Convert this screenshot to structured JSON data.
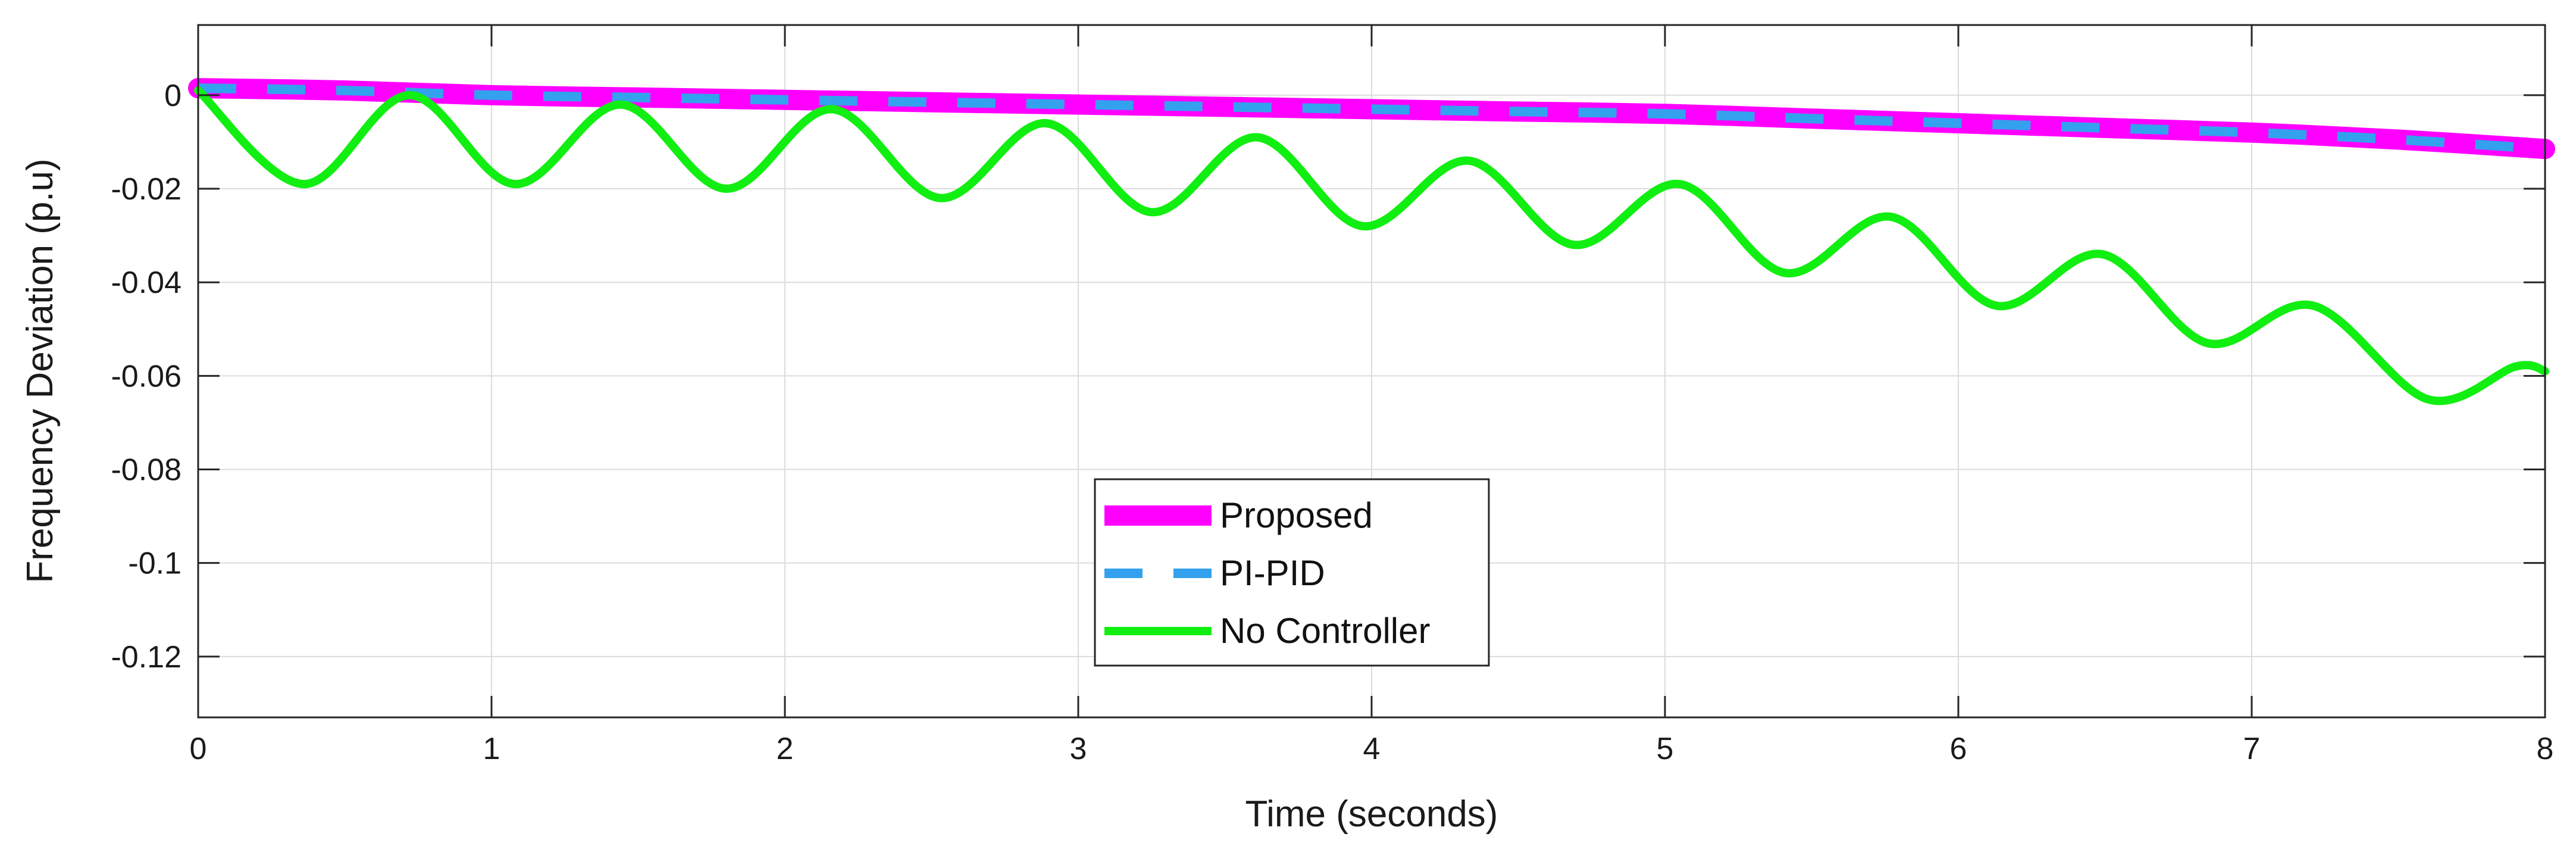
{
  "chart_data": {
    "type": "line",
    "title": "",
    "xlabel": "Time (seconds)",
    "ylabel": "Frequency Deviation (p.u)",
    "xlim": [
      0,
      8
    ],
    "ylim": [
      -0.133,
      0.015
    ],
    "xticks": [
      0,
      1,
      2,
      3,
      4,
      5,
      6,
      7,
      8
    ],
    "xtick_labels": [
      "0",
      "1",
      "2",
      "3",
      "4",
      "5",
      "6",
      "7",
      "8"
    ],
    "yticks": [
      0,
      -0.02,
      -0.04,
      -0.06,
      -0.08,
      -0.1,
      -0.12
    ],
    "ytick_labels": [
      "0",
      "-0.02",
      "-0.04",
      "-0.06",
      "-0.08",
      "-0.1",
      "-0.12"
    ],
    "grid": true,
    "legend_position": "bottom-center",
    "series": [
      {
        "name": "Proposed",
        "color": "#ff00ff",
        "style": "solid-thick",
        "x": [
          0,
          0.5,
          1,
          1.5,
          2,
          2.5,
          3,
          3.5,
          4,
          4.5,
          5,
          5.5,
          6,
          6.5,
          7,
          7.5,
          8
        ],
        "y": [
          0.0015,
          0.001,
          0.0,
          -0.0005,
          -0.001,
          -0.0015,
          -0.002,
          -0.0025,
          -0.003,
          -0.0035,
          -0.004,
          -0.005,
          -0.006,
          -0.007,
          -0.008,
          -0.0095,
          -0.0115
        ]
      },
      {
        "name": "PI-PID",
        "color": "#33a1ee",
        "style": "dashed",
        "x": [
          0,
          0.5,
          1,
          1.5,
          2,
          2.5,
          3,
          3.5,
          4,
          4.5,
          5,
          5.5,
          6,
          6.5,
          7,
          7.5,
          8
        ],
        "y": [
          0.0015,
          0.001,
          0.0,
          -0.0005,
          -0.001,
          -0.0015,
          -0.002,
          -0.0025,
          -0.003,
          -0.0035,
          -0.004,
          -0.005,
          -0.006,
          -0.007,
          -0.008,
          -0.0095,
          -0.0115
        ]
      },
      {
        "name": "No Controller",
        "color": "#11ee11",
        "style": "solid",
        "x": [
          0,
          0.36,
          0.72,
          1.08,
          1.44,
          1.8,
          2.16,
          2.53,
          2.89,
          3.25,
          3.61,
          3.97,
          4.33,
          4.69,
          5.05,
          5.41,
          5.77,
          6.13,
          6.49,
          6.85,
          7.21,
          7.6,
          7.9,
          8.0
        ],
        "y": [
          0.001,
          -0.019,
          0.0,
          -0.019,
          -0.002,
          -0.02,
          -0.003,
          -0.022,
          -0.006,
          -0.025,
          -0.009,
          -0.028,
          -0.014,
          -0.032,
          -0.019,
          -0.038,
          -0.026,
          -0.045,
          -0.034,
          -0.053,
          -0.045,
          -0.065,
          -0.058,
          -0.059
        ]
      }
    ]
  }
}
